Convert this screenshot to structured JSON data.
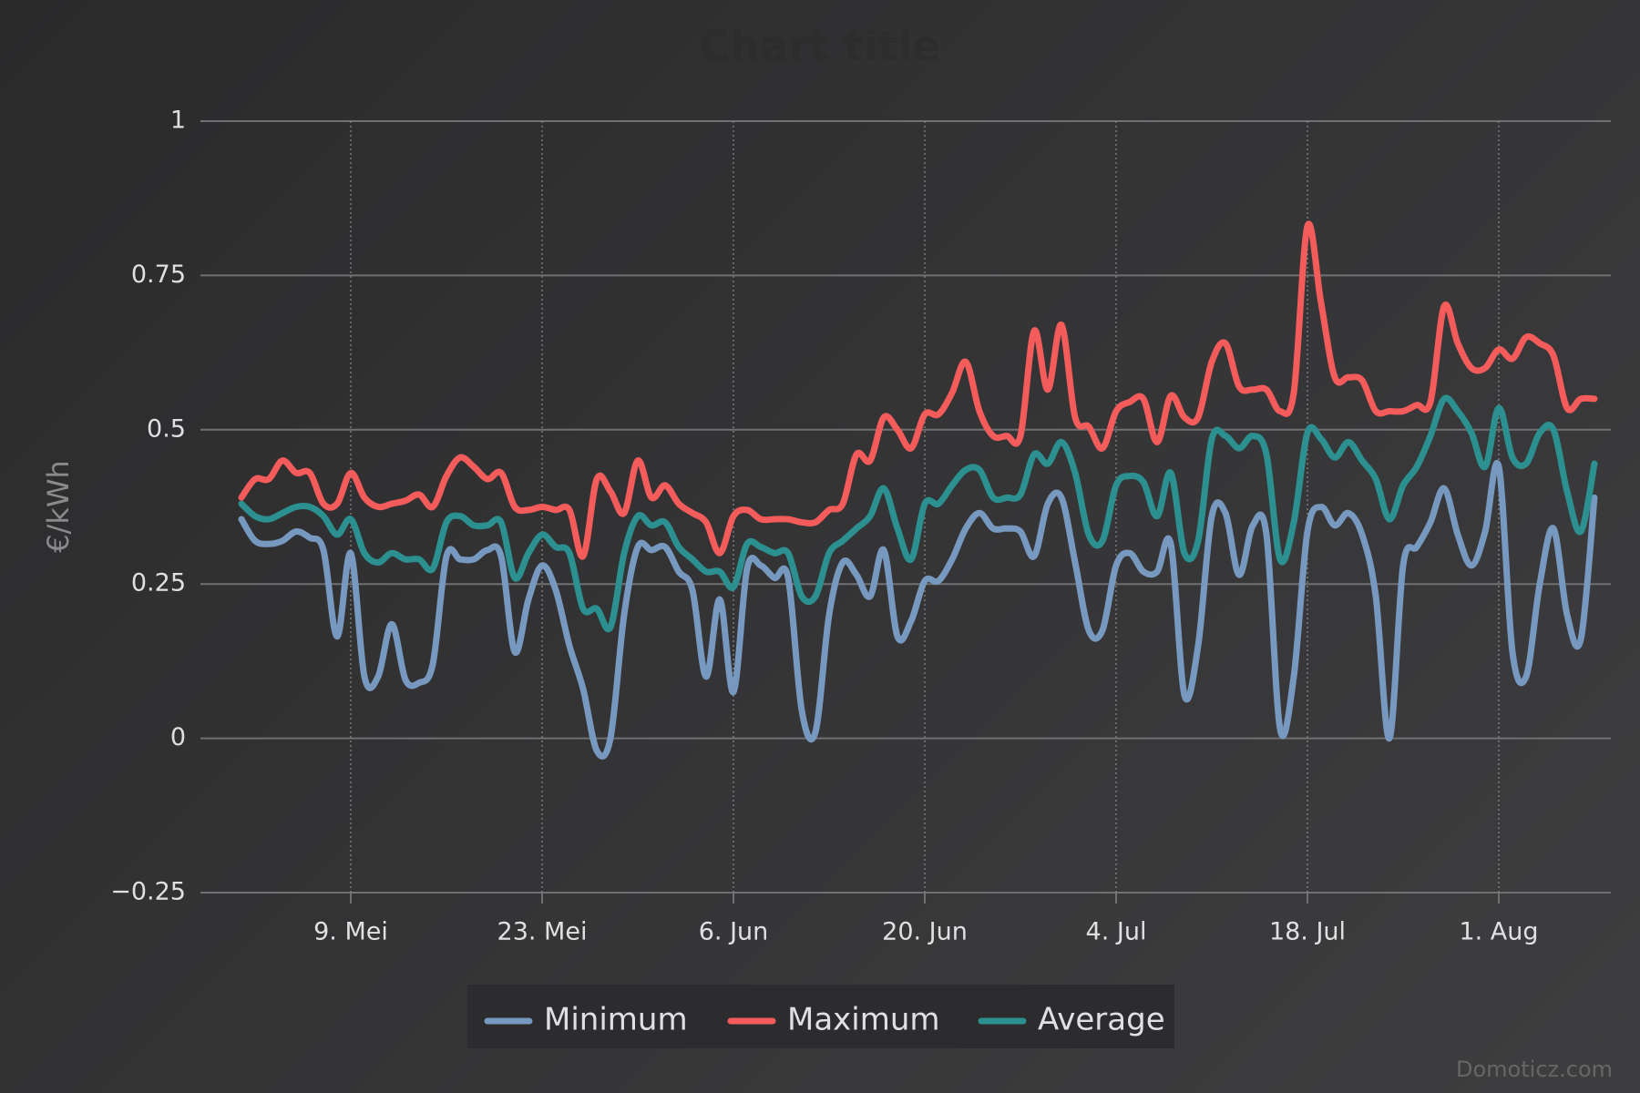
{
  "chart_data": {
    "type": "line",
    "title": "Chart title",
    "y_label": "€/kWh",
    "credit": "Domoticz.com",
    "categories": [
      null,
      null,
      null,
      null,
      null,
      null,
      null,
      null,
      "9. Mei",
      null,
      null,
      null,
      null,
      null,
      null,
      null,
      null,
      null,
      null,
      null,
      null,
      null,
      "23. Mei",
      null,
      null,
      null,
      null,
      null,
      null,
      null,
      null,
      null,
      null,
      null,
      null,
      null,
      "6. Jun",
      null,
      null,
      null,
      null,
      null,
      null,
      null,
      null,
      null,
      null,
      null,
      null,
      null,
      "20. Jun",
      null,
      null,
      null,
      null,
      null,
      null,
      null,
      null,
      null,
      null,
      null,
      null,
      null,
      "4. Jul",
      null,
      null,
      null,
      null,
      null,
      null,
      null,
      null,
      null,
      null,
      null,
      null,
      null,
      "18. Jul",
      null,
      null,
      null,
      null,
      null,
      null,
      null,
      null,
      null,
      null,
      null,
      null,
      null,
      "1. Aug",
      null,
      null,
      null,
      null,
      null,
      null,
      null
    ],
    "ylim": [
      -0.25,
      1
    ],
    "yticks": [
      {
        "value": -0.25,
        "label": "−0.25"
      },
      0,
      0.25,
      0.5,
      0.75,
      1
    ],
    "grid": true,
    "legend": "bottom",
    "series": [
      {
        "name": "Minimum",
        "color": "#7798bf",
        "values": [
          0.355,
          0.32,
          0.315,
          0.32,
          0.335,
          0.325,
          0.305,
          0.165,
          0.3,
          0.1,
          0.1,
          0.185,
          0.095,
          0.09,
          0.12,
          0.295,
          0.29,
          0.29,
          0.305,
          0.295,
          0.14,
          0.225,
          0.28,
          0.24,
          0.15,
          0.08,
          -0.02,
          0.0,
          0.2,
          0.31,
          0.305,
          0.31,
          0.27,
          0.24,
          0.1,
          0.225,
          0.075,
          0.275,
          0.28,
          0.26,
          0.26,
          0.045,
          0.01,
          0.2,
          0.285,
          0.265,
          0.23,
          0.305,
          0.165,
          0.19,
          0.255,
          0.255,
          0.29,
          0.34,
          0.365,
          0.34,
          0.34,
          0.335,
          0.295,
          0.38,
          0.39,
          0.285,
          0.175,
          0.175,
          0.28,
          0.3,
          0.27,
          0.27,
          0.315,
          0.07,
          0.15,
          0.36,
          0.365,
          0.265,
          0.345,
          0.33,
          0.015,
          0.1,
          0.335,
          0.375,
          0.345,
          0.365,
          0.33,
          0.23,
          0.0,
          0.28,
          0.31,
          0.35,
          0.405,
          0.33,
          0.28,
          0.335,
          0.44,
          0.14,
          0.1,
          0.25,
          0.34,
          0.2,
          0.16,
          0.39
        ]
      },
      {
        "name": "Maximum",
        "color": "#f45b5b",
        "values": [
          0.39,
          0.42,
          0.42,
          0.45,
          0.43,
          0.43,
          0.38,
          0.38,
          0.43,
          0.39,
          0.375,
          0.38,
          0.385,
          0.395,
          0.375,
          0.425,
          0.455,
          0.44,
          0.42,
          0.43,
          0.375,
          0.37,
          0.375,
          0.37,
          0.37,
          0.295,
          0.42,
          0.4,
          0.365,
          0.45,
          0.39,
          0.41,
          0.38,
          0.365,
          0.35,
          0.3,
          0.36,
          0.37,
          0.355,
          0.355,
          0.355,
          0.35,
          0.35,
          0.37,
          0.38,
          0.46,
          0.45,
          0.52,
          0.5,
          0.47,
          0.525,
          0.525,
          0.56,
          0.61,
          0.53,
          0.49,
          0.49,
          0.49,
          0.66,
          0.565,
          0.67,
          0.52,
          0.505,
          0.47,
          0.53,
          0.545,
          0.55,
          0.48,
          0.555,
          0.52,
          0.52,
          0.61,
          0.64,
          0.57,
          0.565,
          0.565,
          0.53,
          0.56,
          0.83,
          0.705,
          0.585,
          0.585,
          0.58,
          0.53,
          0.53,
          0.53,
          0.54,
          0.545,
          0.7,
          0.64,
          0.6,
          0.6,
          0.63,
          0.615,
          0.65,
          0.64,
          0.62,
          0.535,
          0.55,
          0.55
        ]
      },
      {
        "name": "Average",
        "color": "#2b908f",
        "values": [
          0.38,
          0.36,
          0.355,
          0.365,
          0.375,
          0.375,
          0.36,
          0.33,
          0.355,
          0.3,
          0.285,
          0.3,
          0.29,
          0.29,
          0.275,
          0.35,
          0.36,
          0.345,
          0.345,
          0.35,
          0.26,
          0.3,
          0.33,
          0.31,
          0.3,
          0.21,
          0.21,
          0.18,
          0.3,
          0.36,
          0.345,
          0.35,
          0.31,
          0.29,
          0.27,
          0.27,
          0.245,
          0.315,
          0.31,
          0.3,
          0.3,
          0.23,
          0.23,
          0.3,
          0.32,
          0.34,
          0.36,
          0.405,
          0.34,
          0.29,
          0.38,
          0.38,
          0.41,
          0.435,
          0.435,
          0.39,
          0.39,
          0.395,
          0.46,
          0.445,
          0.48,
          0.43,
          0.33,
          0.32,
          0.41,
          0.425,
          0.415,
          0.36,
          0.43,
          0.3,
          0.32,
          0.485,
          0.49,
          0.47,
          0.49,
          0.46,
          0.29,
          0.35,
          0.495,
          0.485,
          0.455,
          0.48,
          0.45,
          0.42,
          0.355,
          0.41,
          0.44,
          0.49,
          0.55,
          0.53,
          0.495,
          0.44,
          0.535,
          0.455,
          0.445,
          0.495,
          0.5,
          0.4,
          0.335,
          0.445
        ]
      }
    ]
  }
}
